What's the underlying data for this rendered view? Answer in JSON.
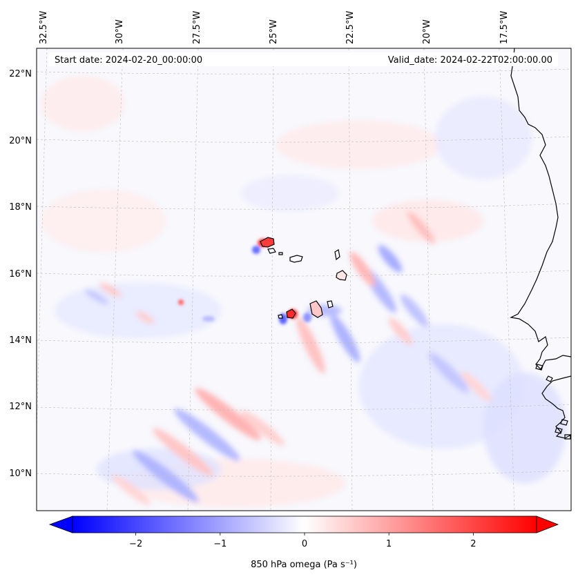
{
  "map": {
    "start_date": "Start date: 2024-02-20_00:00:00",
    "valid_date": "Valid_date: 2024-02-22T02:00:00.00",
    "lon_labels": [
      "32.5°W",
      "30°W",
      "27.5°W",
      "25°W",
      "22.5°W",
      "20°W",
      "17.5°W"
    ],
    "lat_labels": [
      "22°N",
      "20°N",
      "18°N",
      "16°N",
      "14°N",
      "12°N",
      "10°N"
    ],
    "gridlines": true,
    "colors": {
      "negative": "#0000ff",
      "zero": "#ffffff",
      "positive": "#ff0000",
      "coast": "#000000"
    }
  },
  "colorbar": {
    "label": "850 hPa omega (Pa s⁻¹)",
    "vmin": -2.75,
    "vmax": 2.75,
    "ticks": [
      -2,
      -1,
      0,
      1,
      2
    ],
    "tick_labels": [
      "−2",
      "−1",
      "0",
      "1",
      "2"
    ],
    "extend": "both",
    "colormap": "bwr"
  }
}
